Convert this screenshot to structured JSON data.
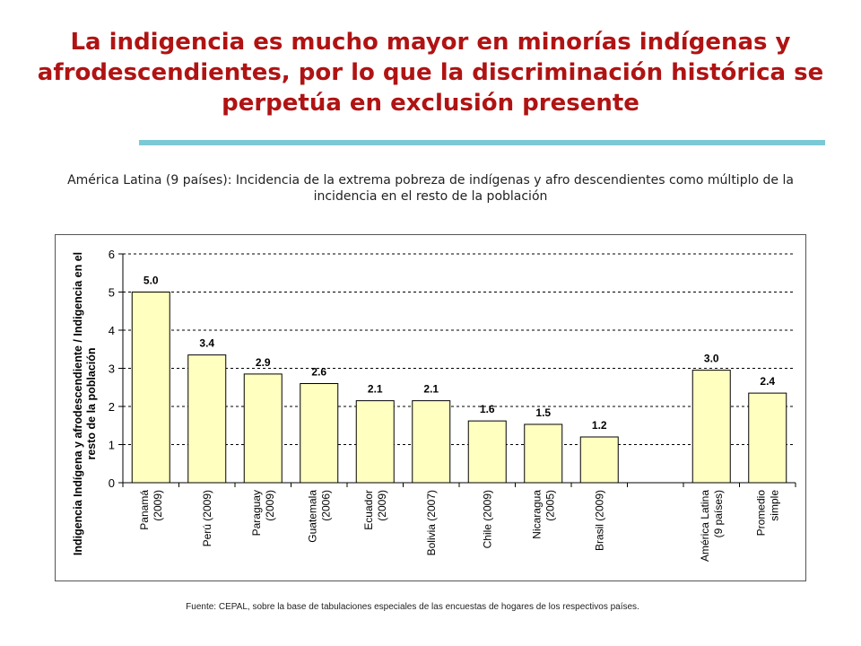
{
  "slide": {
    "title": "La indigencia es mucho mayor en minorías indígenas y afrodescendientes, por lo que la discriminación histórica se perpetúa en exclusión presente",
    "subtitle": "América Latina (9 países): Incidencia de la extrema pobreza de indígenas y afro descendientes como múltiplo de la incidencia en el resto de la población",
    "source": "Fuente: CEPAL, sobre la base de tabulaciones especiales de las encuestas de hogares de los respectivos países.",
    "accent_color": "#b01313",
    "rule_color": "#7cc9d6"
  },
  "chart_data": {
    "type": "bar",
    "ylabel": "Indigencia Indígena y afrodescendiente / Indigencia en el resto de la población",
    "ylim": [
      0,
      6
    ],
    "yticks": [
      "0",
      "1",
      "2",
      "3",
      "4",
      "5",
      "6"
    ],
    "grid": "dashed horizontal",
    "bar_color": "#ffffc0",
    "categories": [
      [
        "Panamá",
        "(2009)"
      ],
      [
        "Perú (2009)"
      ],
      [
        "Paraguay",
        "(2009)"
      ],
      [
        "Guatemala",
        "(2006)"
      ],
      [
        "Ecuador",
        "(2009)"
      ],
      [
        "Bolivia (2007)"
      ],
      [
        "Chile (2009)"
      ],
      [
        "Nicaragua",
        "(2005)"
      ],
      [
        "Brasil (2009)"
      ],
      [],
      [
        "América Latina",
        "(9 países)"
      ],
      [
        "Promedio",
        "simple"
      ]
    ],
    "values": [
      5.0,
      3.35,
      2.85,
      2.6,
      2.15,
      2.15,
      1.62,
      1.53,
      1.2,
      null,
      2.95,
      2.35
    ],
    "data_labels": [
      "5.0",
      "3.4",
      "2.9",
      "2.6",
      "2.1",
      "2.1",
      "1.6",
      "1.5",
      "1.2",
      "",
      "3.0",
      "2.4"
    ]
  }
}
